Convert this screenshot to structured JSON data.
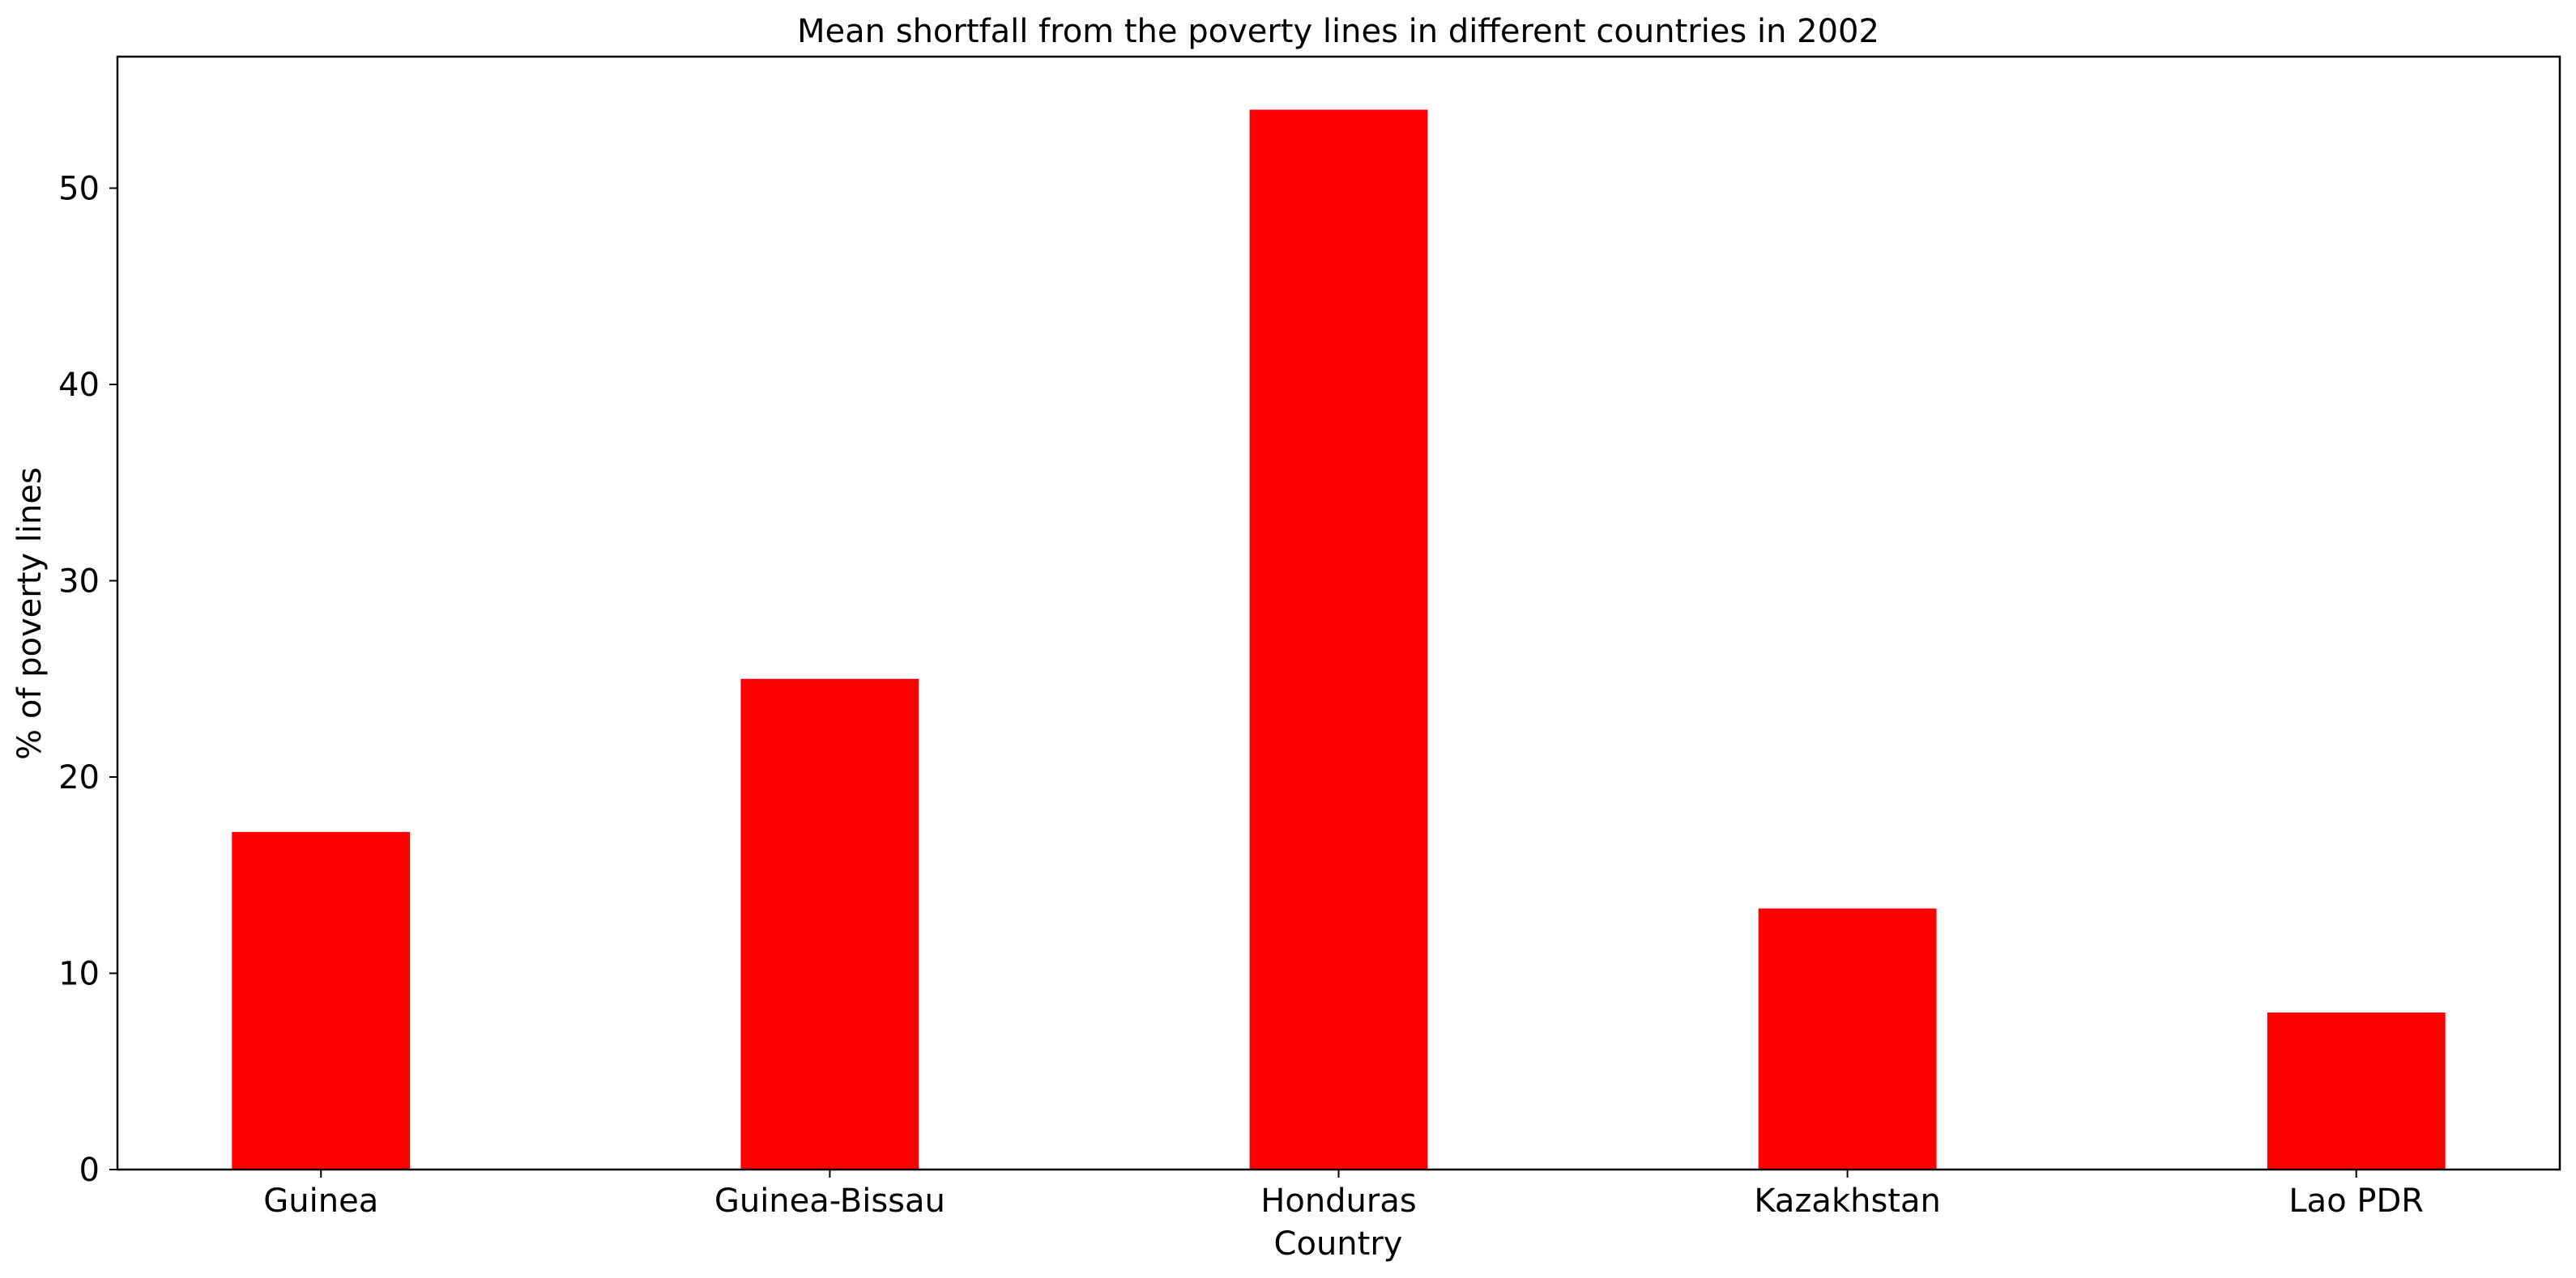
{
  "chart_data": {
    "type": "bar",
    "title": "Mean shortfall from the poverty lines in different countries in 2002",
    "xlabel": "Country",
    "ylabel": "% of poverty lines",
    "categories": [
      "Guinea",
      "Guinea-Bissau",
      "Honduras",
      "Kazakhstan",
      "Lao PDR"
    ],
    "values": [
      17.2,
      25.0,
      54.0,
      13.3,
      8.0
    ],
    "ylim": [
      0,
      56.7
    ],
    "yticks": [
      0,
      10,
      20,
      30,
      40,
      50
    ],
    "grid": false,
    "bar_color": "#ff0000"
  }
}
